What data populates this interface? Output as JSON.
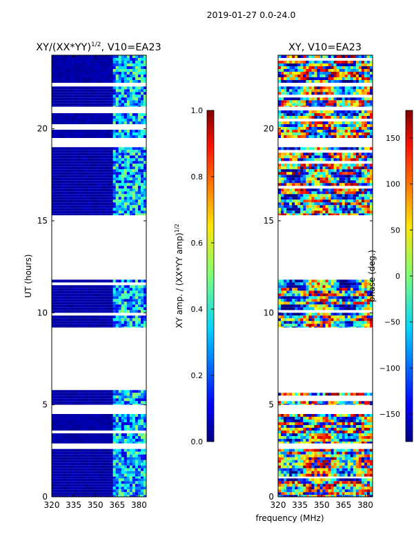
{
  "suptitle": "2019-01-27 0.0-24.0",
  "chart_data": [
    {
      "type": "heatmap",
      "title": "XY/(XX*YY)",
      "title_sup": "1/2",
      "title_tail": ", V10=EA23",
      "xlabel": "",
      "ylabel": "UT (hours)",
      "xlim": [
        320,
        385
      ],
      "ylim": [
        0,
        24
      ],
      "xticks": [
        320,
        335,
        350,
        365,
        380
      ],
      "yticks": [
        0,
        5,
        10,
        15,
        20
      ],
      "flagged_channels_below": 362,
      "data_ut_ranges": [
        [
          0,
          1
        ],
        [
          1,
          2.6
        ],
        [
          2.9,
          4.5
        ],
        [
          5.0,
          5.8
        ],
        [
          9.2,
          11.8
        ],
        [
          15.3,
          19.0
        ],
        [
          19.5,
          21.0
        ],
        [
          21.2,
          22.3
        ],
        [
          22.5,
          24.0
        ]
      ],
      "colorbar": {
        "label": "XY amp. / (XX*YY amp)",
        "label_sup": "1/2",
        "range": [
          0.0,
          1.0
        ],
        "ticks": [
          "0.0",
          "0.2",
          "0.4",
          "0.6",
          "0.8",
          "1.0"
        ]
      }
    },
    {
      "type": "heatmap",
      "title": "XY, V10=EA23",
      "xlabel": "frequency (MHz)",
      "ylabel": "",
      "xlim": [
        320,
        385
      ],
      "ylim": [
        0,
        24
      ],
      "xticks": [
        320,
        335,
        350,
        365,
        380
      ],
      "yticks": [
        0,
        5,
        10,
        15,
        20
      ],
      "data_ut_ranges": [
        [
          0,
          1
        ],
        [
          1,
          2.6
        ],
        [
          2.9,
          4.5
        ],
        [
          5.0,
          5.8
        ],
        [
          9.2,
          11.8
        ],
        [
          15.3,
          19.0
        ],
        [
          19.5,
          21.0
        ],
        [
          21.2,
          22.3
        ],
        [
          22.5,
          24.0
        ]
      ],
      "colorbar": {
        "label": "phase (deg.)",
        "range": [
          -180,
          180
        ],
        "ticks": [
          "−150",
          "−100",
          "−50",
          "0",
          "50",
          "100",
          "150"
        ]
      }
    }
  ]
}
